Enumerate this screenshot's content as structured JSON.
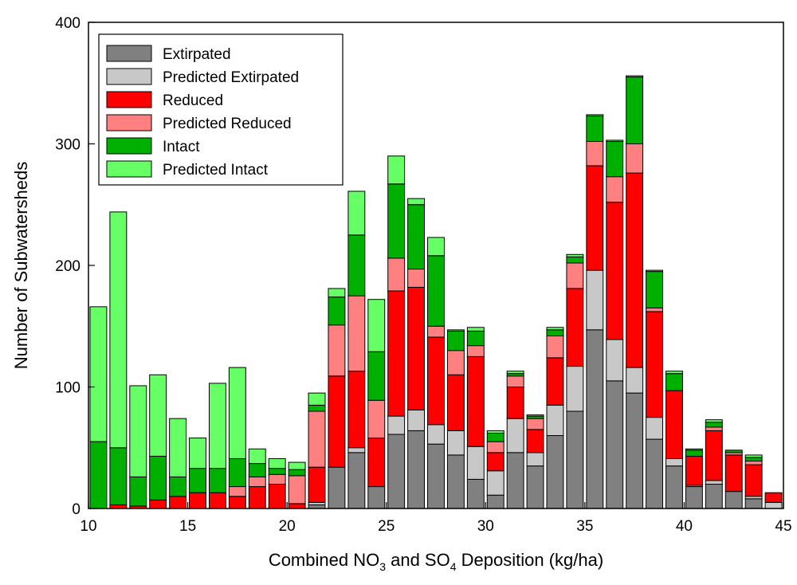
{
  "chart_data": {
    "type": "bar",
    "stacked": true,
    "xlabel_parts": [
      "Combined NO",
      "3",
      " and SO",
      "4",
      " Deposition (kg/ha)"
    ],
    "ylabel": "Number of Subwatersheds",
    "xlim": [
      10,
      45
    ],
    "ylim": [
      0,
      400
    ],
    "xticks": [
      10,
      15,
      20,
      25,
      30,
      35,
      40,
      45
    ],
    "yticks": [
      0,
      100,
      200,
      300,
      400
    ],
    "bin_width": 1,
    "legend_position": "top-left",
    "x": [
      11,
      12,
      13,
      14,
      15,
      16,
      17,
      18,
      19,
      20,
      21,
      22,
      23,
      24,
      25,
      26,
      27,
      28,
      29,
      30,
      31,
      32,
      33,
      34,
      35,
      36,
      37,
      38,
      39,
      40,
      41,
      42,
      43,
      44,
      45
    ],
    "series": [
      {
        "name": "Extirpated",
        "color": "#808080",
        "values": [
          0,
          0,
          0,
          0,
          0,
          0,
          0,
          0,
          0,
          0,
          0,
          3,
          34,
          46,
          18,
          61,
          64,
          53,
          44,
          24,
          11,
          46,
          35,
          60,
          80,
          147,
          105,
          95,
          57,
          35,
          18,
          20,
          14,
          8,
          0
        ]
      },
      {
        "name": "Predicted Extirpated",
        "color": "#c8c8c8",
        "values": [
          0,
          0,
          0,
          0,
          0,
          0,
          0,
          0,
          0,
          0,
          0,
          2,
          0,
          4,
          0,
          15,
          17,
          16,
          20,
          27,
          20,
          28,
          11,
          25,
          37,
          49,
          34,
          21,
          18,
          6,
          1,
          3,
          0,
          2,
          5
        ]
      },
      {
        "name": "Reduced",
        "color": "#ff0000",
        "values": [
          0,
          3,
          2,
          7,
          10,
          13,
          13,
          10,
          18,
          20,
          4,
          29,
          75,
          63,
          40,
          103,
          101,
          72,
          46,
          74,
          15,
          26,
          19,
          39,
          64,
          86,
          113,
          160,
          87,
          56,
          24,
          41,
          30,
          26,
          8
        ]
      },
      {
        "name": "Predicted Reduced",
        "color": "#ff8080",
        "values": [
          0,
          0,
          0,
          0,
          0,
          0,
          0,
          8,
          8,
          8,
          23,
          46,
          42,
          62,
          31,
          27,
          15,
          9,
          20,
          9,
          9,
          9,
          9,
          18,
          21,
          20,
          21,
          24,
          3,
          0,
          0,
          3,
          2,
          3,
          0
        ]
      },
      {
        "name": "Intact",
        "color": "#00b000",
        "values": [
          55,
          47,
          24,
          36,
          16,
          20,
          20,
          23,
          11,
          5,
          5,
          5,
          23,
          50,
          40,
          61,
          53,
          58,
          16,
          12,
          7,
          2,
          2,
          5,
          5,
          21,
          29,
          55,
          30,
          14,
          5,
          4,
          2,
          3,
          0
        ]
      },
      {
        "name": "Predicted Intact",
        "color": "#66ff66",
        "values": [
          111,
          194,
          75,
          67,
          48,
          25,
          70,
          75,
          12,
          8,
          6,
          10,
          7,
          36,
          43,
          23,
          5,
          15,
          1,
          3,
          2,
          2,
          1,
          2,
          2,
          1,
          1,
          1,
          1,
          2,
          1,
          2,
          0,
          2,
          0
        ]
      }
    ]
  }
}
